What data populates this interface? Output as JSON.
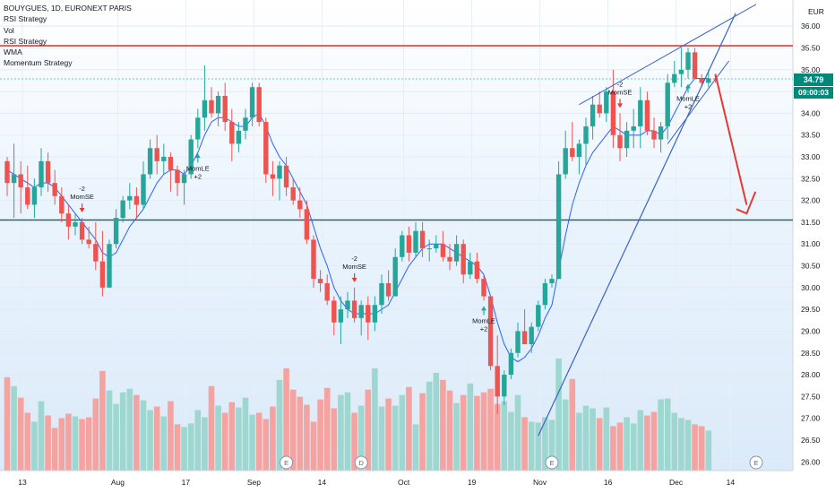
{
  "legend": {
    "symbol": "BOUYGUES, 1D, EURONEXT PARIS",
    "lines": [
      "RSI Strategy",
      "Vol",
      "RSI Strategy",
      "WMA",
      "Momentum Strategy"
    ]
  },
  "currency": "EUR",
  "last_price_label": "34.79",
  "countdown_label": "09:00:03",
  "colors": {
    "up": "#26a69a",
    "down": "#ef5350",
    "volume_up": "#9ed7d0",
    "volume_down": "#f5a3a1",
    "wma": "#2962ff",
    "resistance": "#e53935",
    "support": "#1b5e58",
    "trendline": "#3a63c4",
    "arrow": "#e53935",
    "price_line": "#4dd0e1"
  },
  "chart_data": {
    "type": "candlestick",
    "y_axis": {
      "min": 25.8,
      "max": 36.6,
      "ticks": [
        "26.00",
        "26.50",
        "27.00",
        "27.50",
        "28.00",
        "28.50",
        "29.00",
        "29.50",
        "30.00",
        "30.50",
        "31.00",
        "31.50",
        "32.00",
        "32.50",
        "33.00",
        "33.50",
        "34.00",
        "34.50",
        "35.00",
        "35.50",
        "36.00"
      ]
    },
    "x_axis": {
      "labels": [
        {
          "label": "13",
          "bar": 0
        },
        {
          "label": "Aug",
          "bar": 14
        },
        {
          "label": "17",
          "bar": 24
        },
        {
          "label": "Sep",
          "bar": 34
        },
        {
          "label": "14",
          "bar": 44
        },
        {
          "label": "Oct",
          "bar": 56
        },
        {
          "label": "19",
          "bar": 66
        },
        {
          "label": "Nov",
          "bar": 76
        },
        {
          "label": "16",
          "bar": 86
        },
        {
          "label": "Dec",
          "bar": 96
        },
        {
          "label": "14",
          "bar": 104
        }
      ]
    },
    "ohlc": [
      [
        32.9,
        33.0,
        32.1,
        32.4
      ],
      [
        32.4,
        33.3,
        31.6,
        32.6
      ],
      [
        32.6,
        32.9,
        31.7,
        32.3
      ],
      [
        32.3,
        32.8,
        31.8,
        31.9
      ],
      [
        31.9,
        32.5,
        31.6,
        32.3
      ],
      [
        32.3,
        33.2,
        32.1,
        32.9
      ],
      [
        32.9,
        33.1,
        32.2,
        32.4
      ],
      [
        32.4,
        32.7,
        31.9,
        32.1
      ],
      [
        32.1,
        32.3,
        31.5,
        31.7
      ],
      [
        31.7,
        31.9,
        31.1,
        31.4
      ],
      [
        31.4,
        31.7,
        31.2,
        31.5
      ],
      [
        31.5,
        31.6,
        31.0,
        31.1
      ],
      [
        31.1,
        31.4,
        30.9,
        31.0
      ],
      [
        31.0,
        31.5,
        30.4,
        30.6
      ],
      [
        30.6,
        31.3,
        29.8,
        30.0
      ],
      [
        30.0,
        31.1,
        30.0,
        31.0
      ],
      [
        31.0,
        31.8,
        30.9,
        31.6
      ],
      [
        31.6,
        32.1,
        31.5,
        32.0
      ],
      [
        32.0,
        32.4,
        31.8,
        32.1
      ],
      [
        32.1,
        32.3,
        31.6,
        31.9
      ],
      [
        31.9,
        32.9,
        31.8,
        32.6
      ],
      [
        32.6,
        33.4,
        32.5,
        33.2
      ],
      [
        33.2,
        33.5,
        32.6,
        32.9
      ],
      [
        32.9,
        33.3,
        32.6,
        33.0
      ],
      [
        33.0,
        33.1,
        32.2,
        32.7
      ],
      [
        32.7,
        32.8,
        32.1,
        32.4
      ],
      [
        32.4,
        32.7,
        31.9,
        32.6
      ],
      [
        32.6,
        33.5,
        32.5,
        33.4
      ],
      [
        33.4,
        34.1,
        33.2,
        33.9
      ],
      [
        33.9,
        35.1,
        33.6,
        34.3
      ],
      [
        34.3,
        34.6,
        33.9,
        34.0
      ],
      [
        34.0,
        34.5,
        33.7,
        34.4
      ],
      [
        34.4,
        34.7,
        33.6,
        33.8
      ],
      [
        33.8,
        34.1,
        32.9,
        33.3
      ],
      [
        33.3,
        33.8,
        33.1,
        33.6
      ],
      [
        33.6,
        34.1,
        33.4,
        33.9
      ],
      [
        33.9,
        34.7,
        33.7,
        34.6
      ],
      [
        34.6,
        34.7,
        33.7,
        33.8
      ],
      [
        33.8,
        33.9,
        32.4,
        32.6
      ],
      [
        32.6,
        32.9,
        32.1,
        32.5
      ],
      [
        32.5,
        32.9,
        32.0,
        32.8
      ],
      [
        32.8,
        33.0,
        32.1,
        32.3
      ],
      [
        32.3,
        32.5,
        31.9,
        32.0
      ],
      [
        32.0,
        32.3,
        31.6,
        31.8
      ],
      [
        31.8,
        32.0,
        31.0,
        31.1
      ],
      [
        31.1,
        31.2,
        30.0,
        30.2
      ],
      [
        30.2,
        30.4,
        29.9,
        30.1
      ],
      [
        30.1,
        30.3,
        29.6,
        29.7
      ],
      [
        29.7,
        29.8,
        28.9,
        29.2
      ],
      [
        29.2,
        29.8,
        28.7,
        29.5
      ],
      [
        29.5,
        29.9,
        29.3,
        29.7
      ],
      [
        29.7,
        30.0,
        29.2,
        29.3
      ],
      [
        29.3,
        29.7,
        28.9,
        29.6
      ],
      [
        29.6,
        29.8,
        28.8,
        29.2
      ],
      [
        29.2,
        29.8,
        29.0,
        29.6
      ],
      [
        29.6,
        30.3,
        29.4,
        30.1
      ],
      [
        30.1,
        30.4,
        29.7,
        29.8
      ],
      [
        29.8,
        30.9,
        29.8,
        30.7
      ],
      [
        30.7,
        31.3,
        30.6,
        31.2
      ],
      [
        31.2,
        31.4,
        30.6,
        30.8
      ],
      [
        30.8,
        31.5,
        30.7,
        31.3
      ],
      [
        31.3,
        31.5,
        30.7,
        30.9
      ],
      [
        30.9,
        31.1,
        30.6,
        30.9
      ],
      [
        30.9,
        31.2,
        30.8,
        31.0
      ],
      [
        31.0,
        31.3,
        30.6,
        30.7
      ],
      [
        30.7,
        31.0,
        30.4,
        30.6
      ],
      [
        30.6,
        31.2,
        30.5,
        31.0
      ],
      [
        31.0,
        31.1,
        30.1,
        30.3
      ],
      [
        30.3,
        30.8,
        30.2,
        30.6
      ],
      [
        30.6,
        30.8,
        30.1,
        30.2
      ],
      [
        30.2,
        30.3,
        29.7,
        29.8
      ],
      [
        29.8,
        29.8,
        28.1,
        28.2
      ],
      [
        28.2,
        28.9,
        27.1,
        27.5
      ],
      [
        27.5,
        28.1,
        27.3,
        28.0
      ],
      [
        28.0,
        28.6,
        27.9,
        28.5
      ],
      [
        28.5,
        29.2,
        28.4,
        29.0
      ],
      [
        29.0,
        29.5,
        28.7,
        28.7
      ],
      [
        28.7,
        29.2,
        28.5,
        29.1
      ],
      [
        29.1,
        29.7,
        29.0,
        29.6
      ],
      [
        29.6,
        30.2,
        29.5,
        30.1
      ],
      [
        30.1,
        30.3,
        30.0,
        30.2
      ],
      [
        30.2,
        32.9,
        30.2,
        32.6
      ],
      [
        32.6,
        33.6,
        32.5,
        33.2
      ],
      [
        33.2,
        33.8,
        32.9,
        33.0
      ],
      [
        33.0,
        33.4,
        32.6,
        33.3
      ],
      [
        33.3,
        33.9,
        32.8,
        33.7
      ],
      [
        33.7,
        34.4,
        33.4,
        34.2
      ],
      [
        34.2,
        34.5,
        33.9,
        34.0
      ],
      [
        34.0,
        34.6,
        33.8,
        34.5
      ],
      [
        34.5,
        35.0,
        33.2,
        33.5
      ],
      [
        33.5,
        34.0,
        32.9,
        33.2
      ],
      [
        33.2,
        33.8,
        33.0,
        33.6
      ],
      [
        33.6,
        34.1,
        33.2,
        33.7
      ],
      [
        33.7,
        34.6,
        33.2,
        34.3
      ],
      [
        34.3,
        34.5,
        33.5,
        33.6
      ],
      [
        33.6,
        33.9,
        33.2,
        33.4
      ],
      [
        33.4,
        33.8,
        33.1,
        33.7
      ],
      [
        33.7,
        34.9,
        33.4,
        34.7
      ],
      [
        34.7,
        35.2,
        34.6,
        34.9
      ],
      [
        34.9,
        35.5,
        34.6,
        35.0
      ],
      [
        35.0,
        35.5,
        34.8,
        35.4
      ],
      [
        35.4,
        35.5,
        34.8,
        34.8
      ],
      [
        34.8,
        34.9,
        34.6,
        34.7
      ],
      [
        34.7,
        35.0,
        34.6,
        34.8
      ],
      [
        34.8,
        34.9,
        34.7,
        34.79
      ]
    ],
    "volume": [
      10.5,
      9.5,
      8.2,
      6.5,
      5.5,
      7.8,
      6.2,
      4.8,
      5.9,
      6.4,
      6.1,
      5.8,
      6.0,
      8.1,
      11.2,
      9.0,
      7.5,
      8.8,
      9.2,
      8.5,
      7.9,
      6.8,
      7.2,
      6.1,
      7.8,
      5.2,
      4.9,
      5.3,
      6.8,
      6.0,
      9.5,
      7.3,
      6.5,
      7.7,
      7.1,
      8.2,
      6.3,
      6.5,
      5.8,
      7.2,
      10.2,
      11.5,
      9.1,
      8.3,
      7.4,
      5.5,
      8.0,
      9.3,
      7.0,
      8.5,
      8.8,
      6.5,
      7.3,
      9.1,
      11.5,
      7.2,
      8.1,
      7.3,
      8.5,
      9.4,
      5.2,
      8.7,
      10.0,
      11.0,
      10.2,
      9.0,
      7.6,
      8.5,
      9.8,
      8.4,
      8.8,
      9.2,
      7.5,
      7.8,
      6.6,
      8.5,
      6.0,
      5.5,
      5.4,
      6.0,
      5.7,
      12.6,
      8.0,
      10.3,
      6.5,
      7.3,
      7.0,
      5.9,
      7.1,
      5.0,
      5.4,
      6.0,
      5.3,
      6.8,
      6.2,
      6.6,
      8.0,
      8.1,
      6.5,
      5.9,
      5.7,
      5.2,
      5.0,
      4.5
    ],
    "volume_max": 12.6,
    "wma": [
      32.7,
      32.6,
      32.5,
      32.4,
      32.3,
      32.4,
      32.4,
      32.3,
      32.1,
      31.9,
      31.7,
      31.5,
      31.3,
      31.1,
      30.8,
      30.7,
      30.8,
      31.1,
      31.4,
      31.6,
      31.8,
      32.1,
      32.4,
      32.6,
      32.7,
      32.7,
      32.6,
      32.8,
      33.1,
      33.5,
      33.8,
      33.9,
      33.9,
      33.8,
      33.7,
      33.7,
      33.9,
      34.0,
      33.7,
      33.3,
      33.0,
      32.8,
      32.5,
      32.2,
      31.9,
      31.4,
      30.9,
      30.5,
      30.0,
      29.7,
      29.5,
      29.4,
      29.4,
      29.4,
      29.4,
      29.5,
      29.6,
      29.9,
      30.2,
      30.5,
      30.7,
      30.9,
      31.0,
      31.0,
      31.0,
      30.9,
      30.8,
      30.7,
      30.6,
      30.5,
      30.3,
      29.8,
      29.2,
      28.7,
      28.4,
      28.3,
      28.4,
      28.6,
      28.9,
      29.3,
      29.6,
      30.4,
      31.2,
      31.9,
      32.4,
      32.8,
      33.1,
      33.3,
      33.5,
      33.7,
      33.6,
      33.5,
      33.5,
      33.5,
      33.6,
      33.6,
      33.5,
      33.7,
      34.0,
      34.3,
      34.6,
      34.8,
      34.8,
      34.8
    ],
    "levels": {
      "resistance": 35.55,
      "support": 31.55,
      "current": 34.79
    },
    "annotations": [
      {
        "bar": 11,
        "label_top": "-2",
        "label_bottom": "MomSE",
        "dir": "down"
      },
      {
        "bar": 28,
        "label_top": "MomLE",
        "label_bottom": "+2",
        "dir": "up"
      },
      {
        "bar": 51,
        "label_top": "-2",
        "label_bottom": "MomSE",
        "dir": "down"
      },
      {
        "bar": 70,
        "label_top": "MomLE",
        "label_bottom": "+2",
        "dir": "up"
      },
      {
        "bar": 90,
        "label_top": "-2",
        "label_bottom": "MomSE",
        "dir": "down"
      },
      {
        "bar": 100,
        "label_top": "MomLE",
        "label_bottom": "+2",
        "dir": "up"
      }
    ],
    "event_markers": [
      {
        "bar": 41,
        "label": "E"
      },
      {
        "bar": 52,
        "label": "D"
      },
      {
        "bar": 80,
        "label": "E"
      },
      {
        "bar": 110,
        "label": "E"
      }
    ]
  }
}
